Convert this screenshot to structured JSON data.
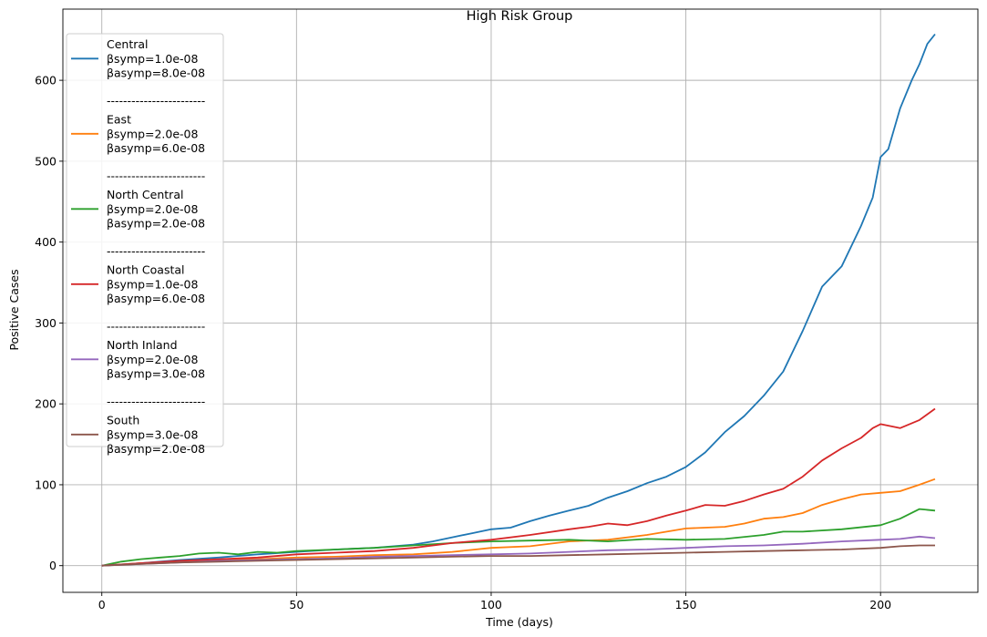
{
  "chart_data": {
    "type": "line",
    "title": "High Risk Group",
    "xlabel": "Time (days)",
    "ylabel": "Positive Cases",
    "xlim": [
      -10,
      225
    ],
    "ylim": [
      -33,
      688
    ],
    "xticks": [
      0,
      50,
      100,
      150,
      200
    ],
    "yticks": [
      0,
      100,
      200,
      300,
      400,
      500,
      600
    ],
    "grid": true,
    "legend_position": "upper-left",
    "legend_separator": "------------------------",
    "series": [
      {
        "name": "Central",
        "legend_lines": [
          "Central",
          "βsymp=1.0e-08",
          "βasymp=8.0e-08"
        ],
        "color": "#1f77b4",
        "x": [
          0,
          10,
          20,
          30,
          40,
          50,
          60,
          70,
          80,
          85,
          90,
          95,
          100,
          105,
          110,
          115,
          120,
          125,
          130,
          135,
          140,
          145,
          150,
          155,
          160,
          165,
          170,
          175,
          180,
          185,
          190,
          195,
          198,
          200,
          202,
          205,
          208,
          210,
          212,
          214
        ],
        "y": [
          0,
          3,
          7,
          10,
          14,
          17,
          20,
          22,
          26,
          30,
          35,
          40,
          45,
          47,
          55,
          62,
          68,
          74,
          84,
          92,
          102,
          110,
          122,
          140,
          165,
          185,
          210,
          240,
          290,
          345,
          370,
          420,
          455,
          505,
          515,
          565,
          600,
          620,
          645,
          657
        ]
      },
      {
        "name": "East",
        "legend_lines": [
          "East",
          "βsymp=2.0e-08",
          "βasymp=6.0e-08"
        ],
        "color": "#ff7f0e",
        "x": [
          0,
          10,
          20,
          30,
          40,
          50,
          60,
          70,
          80,
          90,
          100,
          110,
          120,
          130,
          140,
          150,
          160,
          165,
          170,
          175,
          180,
          185,
          190,
          195,
          200,
          205,
          210,
          214
        ],
        "y": [
          0,
          3,
          5,
          7,
          8,
          10,
          11,
          13,
          14,
          17,
          22,
          24,
          30,
          32,
          38,
          46,
          48,
          52,
          58,
          60,
          65,
          75,
          82,
          88,
          90,
          92,
          100,
          107
        ]
      },
      {
        "name": "North Central",
        "legend_lines": [
          "North Central",
          "βsymp=2.0e-08",
          "βasymp=2.0e-08"
        ],
        "color": "#2ca02c",
        "x": [
          0,
          5,
          10,
          15,
          20,
          25,
          30,
          35,
          40,
          45,
          50,
          60,
          70,
          80,
          90,
          100,
          110,
          120,
          130,
          140,
          150,
          160,
          170,
          175,
          180,
          190,
          200,
          205,
          210,
          214
        ],
        "y": [
          0,
          5,
          8,
          10,
          12,
          15,
          16,
          14,
          17,
          16,
          18,
          20,
          22,
          25,
          28,
          30,
          31,
          32,
          30,
          33,
          32,
          33,
          38,
          42,
          42,
          45,
          50,
          58,
          70,
          68
        ]
      },
      {
        "name": "North Coastal",
        "legend_lines": [
          "North Coastal",
          "βsymp=1.0e-08",
          "βasymp=6.0e-08"
        ],
        "color": "#d62728",
        "x": [
          0,
          10,
          20,
          30,
          40,
          50,
          60,
          70,
          80,
          90,
          100,
          110,
          120,
          125,
          130,
          135,
          140,
          145,
          150,
          155,
          160,
          165,
          170,
          175,
          180,
          185,
          190,
          195,
          198,
          200,
          205,
          210,
          214
        ],
        "y": [
          0,
          3,
          6,
          8,
          10,
          14,
          16,
          18,
          22,
          28,
          32,
          38,
          45,
          48,
          52,
          50,
          55,
          62,
          68,
          75,
          74,
          80,
          88,
          95,
          110,
          130,
          145,
          158,
          170,
          175,
          170,
          180,
          194
        ]
      },
      {
        "name": "North Inland",
        "legend_lines": [
          "North Inland",
          "βsymp=2.0e-08",
          "βasymp=3.0e-08"
        ],
        "color": "#9467bd",
        "x": [
          0,
          10,
          20,
          30,
          40,
          50,
          60,
          70,
          80,
          90,
          100,
          110,
          120,
          130,
          140,
          150,
          160,
          170,
          180,
          190,
          200,
          205,
          210,
          214
        ],
        "y": [
          0,
          2,
          4,
          6,
          7,
          8,
          9,
          11,
          12,
          13,
          14,
          15,
          17,
          19,
          20,
          22,
          24,
          25,
          27,
          30,
          32,
          33,
          36,
          34
        ]
      },
      {
        "name": "South",
        "legend_lines": [
          "South",
          "βsymp=3.0e-08",
          "βasymp=2.0e-08"
        ],
        "color": "#8c564b",
        "x": [
          0,
          10,
          20,
          30,
          40,
          50,
          60,
          70,
          80,
          90,
          100,
          110,
          120,
          130,
          140,
          150,
          160,
          170,
          180,
          190,
          200,
          205,
          210,
          214
        ],
        "y": [
          0,
          2,
          4,
          5,
          6,
          7,
          8,
          9,
          10,
          11,
          12,
          12,
          13,
          14,
          15,
          16,
          17,
          18,
          19,
          20,
          22,
          24,
          25,
          25
        ]
      }
    ]
  }
}
